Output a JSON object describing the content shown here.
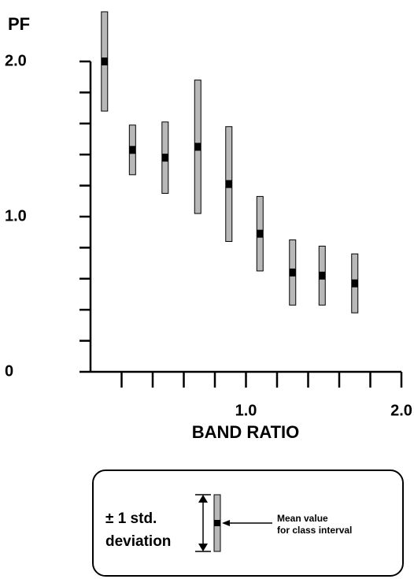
{
  "chart_data": {
    "type": "errorbar",
    "y_label": "PF",
    "x_label": "BAND RATIO",
    "x": [
      0.09,
      0.27,
      0.48,
      0.69,
      0.89,
      1.09,
      1.3,
      1.49,
      1.7
    ],
    "values": [
      2.0,
      1.43,
      1.38,
      1.45,
      1.21,
      0.89,
      0.64,
      0.62,
      0.57
    ],
    "errors": [
      0.32,
      0.16,
      0.23,
      0.43,
      0.37,
      0.24,
      0.21,
      0.19,
      0.19
    ],
    "color": "#b8b8b8",
    "xlim": [
      0,
      2.0
    ],
    "ylim": [
      0,
      2.0
    ],
    "xticks": [
      {
        "value": 1.0,
        "label": "1.0"
      },
      {
        "value": 2.0,
        "label": "2.0"
      }
    ],
    "xminor_ticks": [
      0.2,
      0.4,
      0.6,
      0.8,
      1.2,
      1.4,
      1.6,
      1.8
    ],
    "yticks": [
      0,
      {
        "value": 1.0,
        "label": "1.0"
      },
      {
        "value": 2.0,
        "label": "2.0"
      }
    ],
    "yminor_ticks": [
      0.2,
      0.4,
      0.6,
      0.8,
      1.2,
      1.4,
      1.6,
      1.8
    ],
    "legend": {
      "range_label": [
        "± 1 std.",
        "deviation"
      ],
      "mean_label": [
        "Mean value",
        "for class interval"
      ]
    }
  }
}
